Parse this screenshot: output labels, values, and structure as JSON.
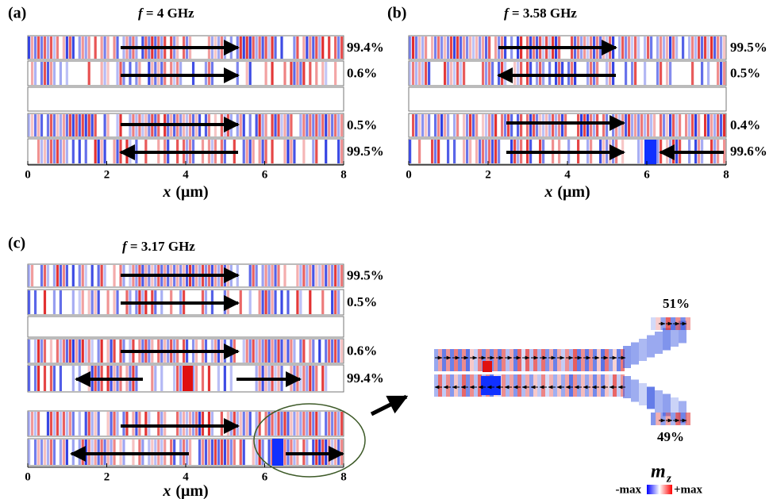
{
  "panels": [
    {
      "label": "(a)",
      "title_symbol": "f",
      "title_value": "=  4 GHz",
      "strips": [
        "99.4%",
        "0.6%",
        "0.5%",
        "99.5%"
      ],
      "xticks": [
        "0",
        "2",
        "4",
        "6",
        "8"
      ],
      "xlabel_symbol": "x",
      "xlabel_unit": "(μm)"
    },
    {
      "label": "(b)",
      "title_symbol": "f",
      "title_value": "=  3.58 GHz",
      "strips": [
        "99.5%",
        "0.5%",
        "0.4%",
        "99.6%"
      ],
      "xticks": [
        "0",
        "2",
        "4",
        "6",
        "8"
      ],
      "xlabel_symbol": "x",
      "xlabel_unit": "(μm)"
    },
    {
      "label": "(c)",
      "title_symbol": "f",
      "title_value": "=  3.17 GHz",
      "strips": [
        "99.5%",
        "0.5%",
        "0.6%",
        "99.4%"
      ],
      "xticks": [
        "0",
        "2",
        "4",
        "6",
        "8"
      ],
      "xlabel_symbol": "x",
      "xlabel_unit": "(μm)"
    }
  ],
  "inset": {
    "top": "51%",
    "bottom": "49%"
  },
  "legend": {
    "symbol": "m",
    "subscript": "z",
    "min": "-max",
    "max": "+max"
  }
}
